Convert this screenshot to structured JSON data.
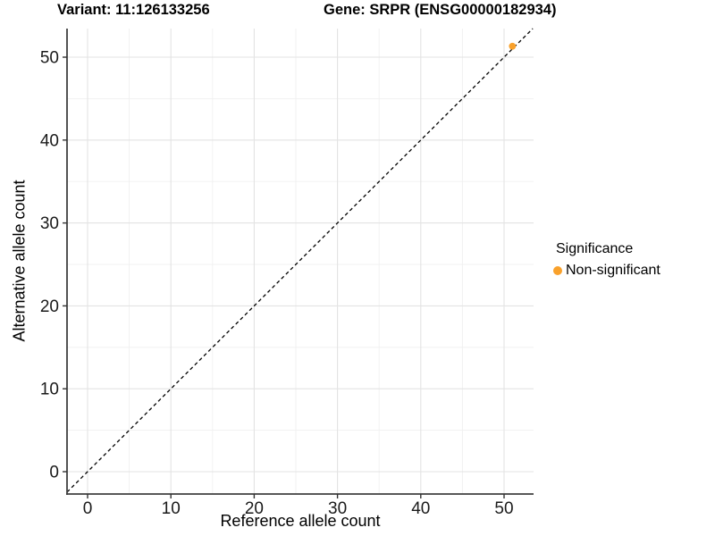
{
  "header": {
    "title_left": "Variant: 11:126133256",
    "title_right": "Gene: SRPR (ENSG00000182934)"
  },
  "chart_data": {
    "type": "scatter",
    "xlabel": "Reference allele count",
    "ylabel": "Alternative allele count",
    "xticks": [
      0,
      10,
      20,
      30,
      40,
      50
    ],
    "yticks": [
      0,
      10,
      20,
      30,
      40,
      50
    ],
    "xlim": [
      -2.5,
      53.5
    ],
    "ylim": [
      -2.5,
      53.5
    ],
    "grid": {
      "major_color": "#e3e3e3",
      "minor_color": "#f0f0f0",
      "minor_step": 5
    },
    "reference_line": {
      "equation": "y = x",
      "style": "dashed",
      "color": "#000000"
    },
    "series": [
      {
        "name": "Non-significant",
        "color": "#F9A12B",
        "points": [
          {
            "x": 51,
            "y": 51
          }
        ]
      }
    ],
    "legend": {
      "title": "Significance",
      "position": "right",
      "items": [
        {
          "label": "Non-significant",
          "color": "#F9A12B"
        }
      ]
    }
  },
  "colors": {
    "background": "#ffffff",
    "axis_line": "#404040",
    "tick_mark": "#333333",
    "tick_label": "#1a1a1a"
  }
}
